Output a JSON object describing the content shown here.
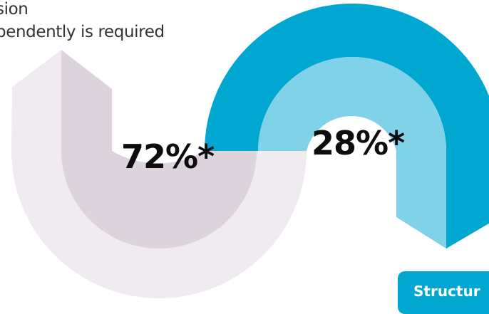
{
  "caption": {
    "line1": "sion",
    "line2": "pendently is required"
  },
  "chart_data": {
    "type": "pie",
    "categories": [
      "72%*",
      "28%*"
    ],
    "values": [
      72,
      28
    ],
    "colors": {
      "left_outer": "#efebf0",
      "left_inner": "#dcd3dc",
      "right_outer": "#00a7d0",
      "right_inner": "#80d2e8"
    }
  },
  "badge": {
    "label": "Structur"
  }
}
